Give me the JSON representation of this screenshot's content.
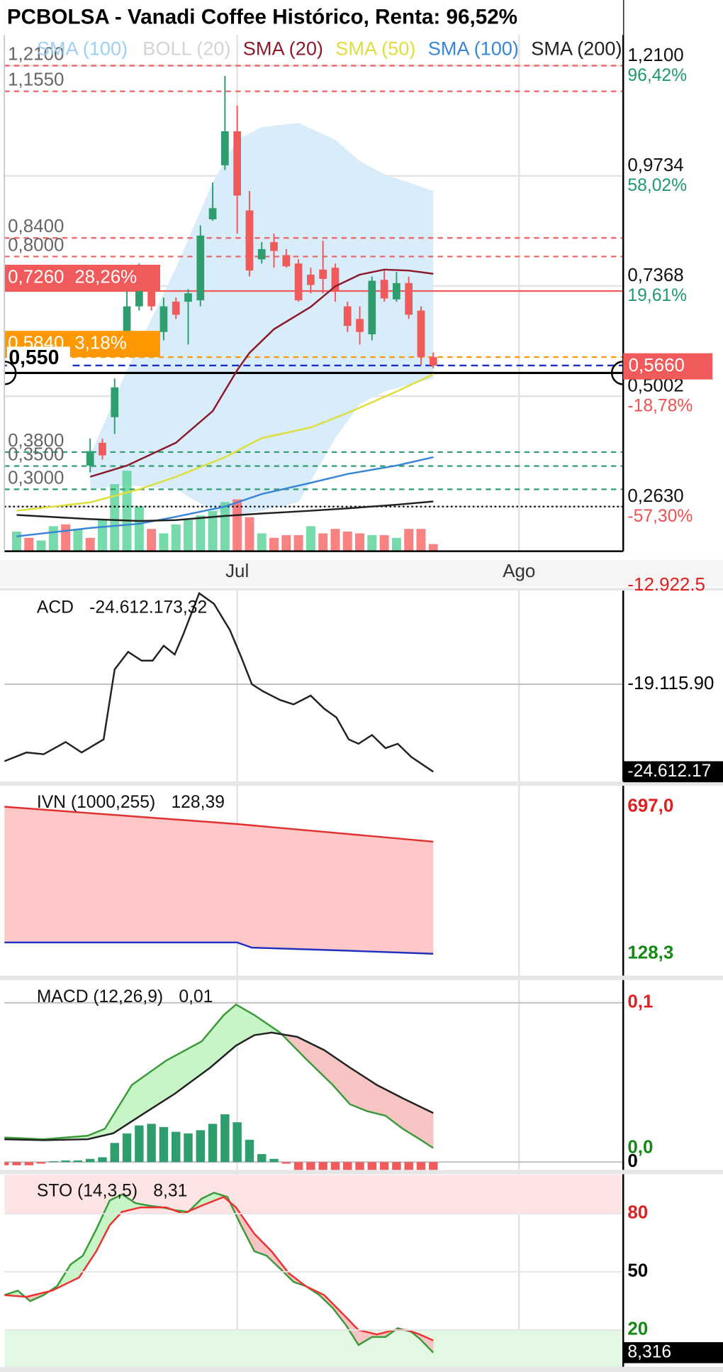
{
  "chart_data": [
    {
      "type": "candlestick",
      "title": "PCBOLSA - Vanadi Coffee Histórico, Renta: 96,52%",
      "xlim": [
        -1,
        49.5
      ],
      "xticks": [
        {
          "value": 18,
          "label": "Jul"
        },
        {
          "value": 41,
          "label": "Ago"
        }
      ],
      "ylim": [
        0.167,
        1.336
      ],
      "yticks": [
        {
          "value": 1.21,
          "label": "1,2100"
        },
        {
          "value": 0.9734,
          "label": "0,9734"
        },
        {
          "value": 0.7368,
          "label": "0,7368"
        },
        {
          "value": 0.5002,
          "label": "0,5002"
        },
        {
          "value": 0.263,
          "label": "0,2630"
        }
      ],
      "change_labels": [
        "96,42%",
        "58,02%",
        "19,61%",
        "-18,78%",
        "-57,30%"
      ],
      "change_colors": [
        "#1f9a6a",
        "#1f9a6a",
        "#1f9a6a",
        "#f05050",
        "#f05050"
      ],
      "grid": true,
      "up_color": "#2f9e6e",
      "down_color": "#f05a5a",
      "candles": {
        "x": [
          6,
          7,
          8,
          9,
          10,
          11,
          12,
          13,
          14,
          15,
          16,
          17,
          18,
          19,
          20,
          21,
          22,
          23,
          24,
          25,
          26,
          27,
          28,
          29,
          30,
          31,
          32,
          33,
          34
        ],
        "open": [
          0.351,
          0.4,
          0.455,
          0.62,
          0.693,
          0.739,
          0.638,
          0.703,
          0.703,
          0.706,
          0.88,
          0.996,
          1.069,
          0.899,
          0.794,
          0.831,
          0.803,
          0.785,
          0.761,
          0.772,
          0.776,
          0.693,
          0.666,
          0.633,
          0.75,
          0.708,
          0.743,
          0.684,
          0.584
        ],
        "high": [
          0.409,
          0.409,
          0.538,
          0.776,
          0.785,
          0.757,
          0.712,
          0.712,
          0.73,
          0.867,
          0.959,
          1.188,
          1.124,
          0.941,
          0.831,
          0.849,
          0.816,
          0.794,
          0.776,
          0.834,
          0.785,
          0.703,
          0.693,
          0.757,
          0.77,
          0.767,
          0.757,
          0.693,
          0.594
        ],
        "low": [
          0.336,
          0.364,
          0.419,
          0.611,
          0.684,
          0.684,
          0.62,
          0.666,
          0.611,
          0.693,
          0.877,
          0.986,
          0.849,
          0.757,
          0.785,
          0.776,
          0.776,
          0.703,
          0.721,
          0.721,
          0.703,
          0.638,
          0.611,
          0.62,
          0.703,
          0.703,
          0.666,
          0.566,
          0.56
        ],
        "close": [
          0.382,
          0.373,
          0.519,
          0.693,
          0.739,
          0.693,
          0.693,
          0.675,
          0.721,
          0.845,
          0.904,
          1.069,
          0.931,
          0.77,
          0.816,
          0.812,
          0.779,
          0.706,
          0.739,
          0.752,
          0.725,
          0.651,
          0.638,
          0.748,
          0.71,
          0.743,
          0.675,
          0.584,
          0.566
        ]
      },
      "volume": {
        "x": [
          0,
          1,
          2,
          3,
          4,
          5,
          6,
          7,
          8,
          9,
          10,
          11,
          12,
          13,
          14,
          15,
          16,
          17,
          18,
          19,
          20,
          21,
          22,
          23,
          24,
          25,
          26,
          27,
          28,
          29,
          30,
          31,
          32,
          33,
          34
        ],
        "values": [
          22,
          15,
          12,
          28,
          30,
          25,
          15,
          35,
          75,
          90,
          50,
          25,
          20,
          30,
          35,
          40,
          45,
          55,
          58,
          38,
          20,
          15,
          18,
          18,
          28,
          20,
          25,
          22,
          20,
          18,
          18,
          15,
          25,
          25,
          8
        ],
        "colors": [
          "#5fd39b",
          "#f76b6b",
          "#5fd39b",
          "#5fd39b",
          "#f76b6b",
          "#5fd39b",
          "#f76b6b",
          "#5fd39b",
          "#5fd39b",
          "#5fd39b",
          "#5fd39b",
          "#f76b6b",
          "#5fd39b",
          "#5fd39b",
          "#5fd39b",
          "#5fd39b",
          "#5fd39b",
          "#5fd39b",
          "#f76b6b",
          "#f76b6b",
          "#5fd39b",
          "#f76b6b",
          "#f76b6b",
          "#f76b6b",
          "#5fd39b",
          "#f76b6b",
          "#f76b6b",
          "#f76b6b",
          "#f76b6b",
          "#5fd39b",
          "#f76b6b",
          "#5fd39b",
          "#f76b6b",
          "#f76b6b",
          "#f76b6b"
        ]
      },
      "legend_extra": {
        "name": "SMA (100)",
        "color": "#9fd0f0"
      },
      "bands": {
        "name": "BOLL (20)",
        "color": "#d4d4d4",
        "fill": "#d8ecfa",
        "x": [
          6,
          9,
          13,
          16,
          18,
          20,
          23,
          26,
          28,
          30,
          34
        ],
        "upper": [
          0.373,
          0.556,
          0.776,
          0.959,
          1.051,
          1.078,
          1.087,
          1.051,
          1.005,
          0.977,
          0.941
        ],
        "lower": [
          0.3,
          0.309,
          0.3,
          0.254,
          0.245,
          0.254,
          0.272,
          0.41,
          0.483,
          0.51,
          0.538
        ]
      },
      "series": [
        {
          "name": "SMA (20)",
          "color": "#8b1a2b",
          "x": [
            6,
            9,
            13,
            16,
            18,
            19,
            21,
            24,
            26,
            28,
            30,
            32,
            34
          ],
          "values": [
            0.327,
            0.351,
            0.4,
            0.468,
            0.556,
            0.593,
            0.644,
            0.692,
            0.736,
            0.761,
            0.772,
            0.77,
            0.763
          ]
        },
        {
          "name": "SMA (50)",
          "color": "#dede3c",
          "x": [
            0,
            6,
            10,
            13,
            17,
            20,
            24,
            27,
            31,
            34
          ],
          "values": [
            0.254,
            0.272,
            0.3,
            0.327,
            0.369,
            0.41,
            0.433,
            0.464,
            0.51,
            0.547
          ]
        },
        {
          "name": "SMA (100)",
          "color": "#3a86d6",
          "x": [
            0,
            6,
            10,
            13,
            17,
            20,
            24,
            27,
            31,
            34
          ],
          "values": [
            0.199,
            0.217,
            0.226,
            0.241,
            0.263,
            0.29,
            0.314,
            0.333,
            0.351,
            0.369
          ]
        },
        {
          "name": "SMA (200)",
          "color": "#222222",
          "x": [
            0,
            6,
            10,
            13,
            17,
            20,
            24,
            27,
            31,
            34
          ],
          "values": [
            0.245,
            0.236,
            0.232,
            0.234,
            0.243,
            0.248,
            0.254,
            0.259,
            0.267,
            0.274
          ]
        }
      ],
      "levels": [
        {
          "value": 1.21,
          "label": "1,2100",
          "color": "#f06060",
          "dash": "dashed"
        },
        {
          "value": 1.155,
          "label": "1,1550",
          "color": "#f06060",
          "dash": "dashed"
        },
        {
          "value": 0.84,
          "label": "0,8400",
          "color": "#f06060",
          "dash": "dashed"
        },
        {
          "value": 0.8,
          "label": "0,8000",
          "color": "#f06060",
          "dash": "dashed"
        },
        {
          "value": 0.726,
          "label": "0,7260",
          "change": "28,26%",
          "color": "#f05a5a",
          "dash": "solid",
          "box": true
        },
        {
          "value": 0.584,
          "label": "0,5840",
          "change": "3,18%",
          "color": "#ff9800",
          "dash": "dashed",
          "box": true
        },
        {
          "value": 0.55,
          "label": "0,550",
          "color": "#000000",
          "dash": "solid",
          "bold": true
        },
        {
          "value": 0.38,
          "label": "0,3800",
          "color": "#2f9e6e",
          "dash": "dashed"
        },
        {
          "value": 0.35,
          "label": "0,3500",
          "color": "#2f9e6e",
          "dash": "dashed"
        },
        {
          "value": 0.3,
          "label": "0,3000",
          "color": "#2f9e6e",
          "dash": "dashed"
        },
        {
          "value": 0.263,
          "color": "#000000",
          "dash": "dotted"
        }
      ],
      "last": {
        "value": 0.566,
        "label": "0,5660",
        "color": "#f05a5a",
        "line_color": "#1a2fd0"
      }
    },
    {
      "type": "line",
      "name": "ACD",
      "value_label": "-24.612.173,32",
      "ylim": [
        -25216800,
        -13234900
      ],
      "yticks": [
        {
          "value": -12922500,
          "label": "-12.922.5"
        },
        {
          "value": -19115900,
          "label": "-19.115.90"
        }
      ],
      "ytick_colors": [
        "#e02020",
        "#000000"
      ],
      "series": [
        {
          "color": "#222222",
          "x": [
            -1.0,
            0.8,
            2.2,
            4.0,
            5.3,
            7.1,
            8.0,
            9.1,
            10.2,
            11.1,
            12.0,
            12.9,
            13.6,
            14.9,
            16.1,
            17.4,
            18.3,
            19.2,
            20.1,
            21.5,
            22.6,
            24.0,
            25.1,
            26.1,
            27.1,
            27.9,
            29.0,
            30.1,
            31.1,
            32.2,
            34.0
          ],
          "values": [
            -23950000,
            -23403000,
            -23513000,
            -22743000,
            -23403000,
            -22579000,
            -18182000,
            -17082000,
            -17632000,
            -17632000,
            -16698000,
            -17247000,
            -15983000,
            -13400000,
            -14059000,
            -15708000,
            -17357000,
            -19116000,
            -19556000,
            -20105000,
            -20380000,
            -19830000,
            -20655000,
            -21204000,
            -22579000,
            -22853000,
            -22304000,
            -23128000,
            -22853000,
            -23678000,
            -24612173.32
          ]
        }
      ],
      "last": {
        "value": -24612173.32,
        "label": "-24.612.17"
      }
    },
    {
      "type": "area",
      "name": "IVN (1000,255)",
      "value_label": "128,39",
      "ylim": [
        43.7,
        778.2
      ],
      "yticks": [
        {
          "value": 697,
          "label": "697,0"
        },
        {
          "value": 128.3,
          "label": "128,3"
        }
      ],
      "ytick_colors": [
        "#e02020",
        "#148a14"
      ],
      "fill": "#ffc8c8",
      "series": [
        {
          "color": "#e03030",
          "x": [
            -1,
            18,
            34
          ],
          "values": [
            697,
            630,
            562
          ]
        },
        {
          "color": "#2030c0",
          "x": [
            -1,
            18,
            19.2,
            27,
            34
          ],
          "values": [
            172,
            172,
            152,
            140,
            128.39
          ]
        }
      ]
    },
    {
      "type": "macd",
      "name": "MACD (12,26,9)",
      "value_label": "0,01",
      "ylim": [
        -0.0049,
        0.1143
      ],
      "yticks": [
        {
          "value": 0.1,
          "label": "0,1"
        },
        {
          "value": 0,
          "label": "0"
        }
      ],
      "ytick_colors": [
        "#e02020",
        "#000000"
      ],
      "up_fill": "#c8f5c8",
      "down_fill": "#f7c4c4",
      "series": [
        {
          "color": "#3a9a3a",
          "x": [
            -1.0,
            2.2,
            5.8,
            7.2,
            9.4,
            12.2,
            15.1,
            16.9,
            17.9,
            19.4,
            21.5,
            23.6,
            25.8,
            27.2,
            28.6,
            30.1,
            31.5,
            32.9,
            34.0
          ],
          "values": [
            0.0154,
            0.0143,
            0.0165,
            0.0209,
            0.0484,
            0.0637,
            0.0758,
            0.0923,
            0.0989,
            0.0923,
            0.0813,
            0.0648,
            0.0484,
            0.0363,
            0.0319,
            0.0291,
            0.0209,
            0.0143,
            0.0088
          ]
        },
        {
          "color": "#222222",
          "x": [
            -1.0,
            2.2,
            5.8,
            7.9,
            10.1,
            12.9,
            15.8,
            17.9,
            19.4,
            20.8,
            22.9,
            25.1,
            27.2,
            29.4,
            31.5,
            34.0
          ],
          "values": [
            0.0143,
            0.0137,
            0.0143,
            0.0181,
            0.0291,
            0.0429,
            0.0593,
            0.0731,
            0.0797,
            0.0813,
            0.0786,
            0.0703,
            0.0593,
            0.0484,
            0.0401,
            0.0308
          ]
        }
      ],
      "histogram": {
        "x": [
          -1,
          0,
          1,
          2,
          3,
          4,
          5,
          6,
          7,
          8,
          9,
          10,
          11,
          12,
          13,
          14,
          15,
          16,
          17,
          18,
          19,
          20,
          21,
          22,
          23,
          24,
          25,
          26,
          27,
          28,
          29,
          30,
          31,
          32,
          33,
          34
        ],
        "values": [
          -0.002,
          -0.002,
          -0.002,
          -0.001,
          0.0005,
          0.001,
          0.001,
          0.002,
          0.003,
          0.012,
          0.018,
          0.023,
          0.024,
          0.022,
          0.019,
          0.018,
          0.02,
          0.024,
          0.03,
          0.025,
          0.014,
          0.005,
          0.002,
          -0.001,
          -0.005,
          -0.005,
          -0.005,
          -0.005,
          -0.005,
          -0.005,
          -0.005,
          -0.005,
          -0.005,
          -0.005,
          -0.005,
          -0.005
        ],
        "up_color": "#2f9e6e",
        "down_color": "#f05a5a"
      },
      "last": {
        "value": 0.0088,
        "label": "0,0",
        "color": "#148a14"
      }
    },
    {
      "type": "stochastic",
      "name": "STO (14,3,5)",
      "value_label": "8,31",
      "ylim": [
        1.05,
        100.3
      ],
      "yticks": [
        80,
        50,
        20
      ],
      "ytick_colors": [
        "#e02020",
        "#000000",
        "#148a14"
      ],
      "zones": [
        {
          "from": 80,
          "to": 100,
          "color": "#fde4e4"
        },
        {
          "from": 0,
          "to": 20,
          "color": "#e2f8e2"
        }
      ],
      "up_fill": "#c8f5c8",
      "down_fill": "#f7c4c4",
      "series": [
        {
          "color": "#3a9a3a",
          "x": [
            -1.0,
            0.1,
            1.1,
            2.2,
            3.3,
            4.4,
            5.4,
            6.5,
            7.6,
            8.6,
            9.7,
            10.8,
            11.9,
            12.9,
            14.0,
            15.1,
            16.1,
            17.2,
            18.3,
            19.4,
            20.4,
            21.5,
            22.6,
            23.6,
            24.7,
            25.8,
            26.9,
            27.9,
            29.0,
            30.1,
            31.1,
            32.2,
            32.9,
            34.0
          ],
          "values": [
            38.0,
            40.3,
            34.9,
            38.0,
            42.6,
            53.8,
            58.3,
            71.9,
            86.8,
            89.9,
            85.4,
            84.1,
            83.2,
            81.8,
            80.9,
            87.7,
            90.8,
            88.6,
            74.1,
            60.6,
            58.3,
            51.6,
            44.8,
            42.6,
            38.0,
            31.3,
            22.3,
            12.3,
            16.4,
            16.4,
            20.9,
            19.1,
            15.5,
            8.316
          ]
        },
        {
          "color": "#f03030",
          "x": [
            -1.0,
            0.8,
            2.9,
            5.1,
            6.5,
            7.6,
            8.6,
            10.1,
            12.2,
            13.6,
            15.1,
            16.9,
            17.9,
            19.4,
            20.8,
            22.2,
            23.6,
            25.1,
            26.5,
            27.9,
            29.4,
            30.8,
            31.9,
            32.9,
            34.0
          ],
          "values": [
            38.0,
            37.1,
            40.3,
            47.1,
            60.6,
            74.1,
            80.9,
            83.2,
            83.2,
            80.0,
            84.1,
            88.6,
            83.2,
            69.6,
            60.6,
            49.3,
            42.6,
            38.0,
            29.0,
            20.0,
            17.7,
            20.0,
            20.0,
            17.7,
            14.6
          ]
        }
      ],
      "last": {
        "value": 8.316,
        "label": "8,316"
      }
    }
  ]
}
